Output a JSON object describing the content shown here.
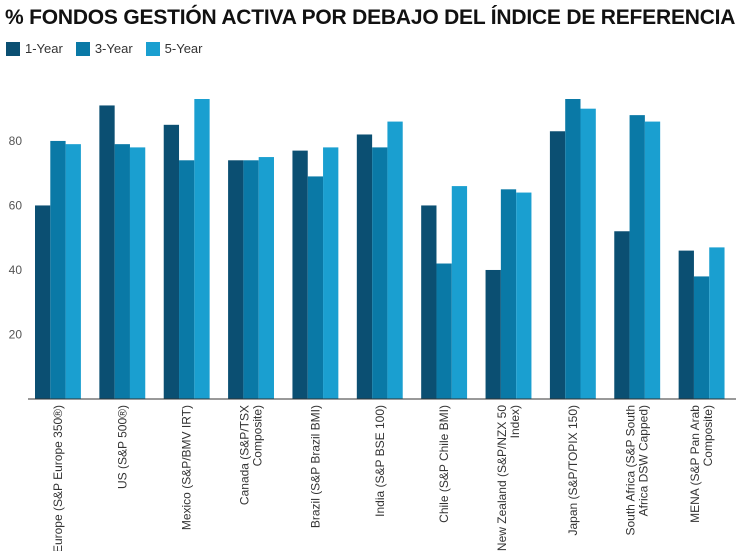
{
  "chart_data": {
    "type": "bar",
    "title": "% FONDOS GESTIÓN ACTIVA POR DEBAJO DEL ÍNDICE DE REFERENCIA",
    "xlabel": "",
    "ylabel": "",
    "ylim": [
      0,
      93
    ],
    "yticks": [
      20,
      40,
      60,
      80
    ],
    "grid": false,
    "legend_position": "top-left",
    "categories": [
      [
        "Europe (S&P Europe 350®)"
      ],
      [
        "US (S&P 500®)"
      ],
      [
        "Mexico (S&P/BMV IRT)"
      ],
      [
        "Canada (S&P/TSX",
        "Composite)"
      ],
      [
        "Brazil (S&P Brazil BMI)"
      ],
      [
        "India (S&P BSE 100)"
      ],
      [
        "Chile (S&P Chile BMI)"
      ],
      [
        "New Zealand (S&P/NZX 50",
        "Index)"
      ],
      [
        "Japan (S&P/TOPIX 150)"
      ],
      [
        "South Africa (S&P South",
        "Africa DSW Capped)"
      ],
      [
        "MENA (S&P Pan Arab",
        "Composite)"
      ]
    ],
    "series": [
      {
        "name": "1-Year",
        "color": "#0b4f72",
        "values": [
          60,
          91,
          85,
          74,
          77,
          82,
          60,
          40,
          83,
          52,
          46
        ]
      },
      {
        "name": "3-Year",
        "color": "#0a79a6",
        "values": [
          80,
          79,
          74,
          74,
          69,
          78,
          42,
          65,
          93,
          88,
          38
        ]
      },
      {
        "name": "5-Year",
        "color": "#1a9fd0",
        "values": [
          79,
          78,
          93,
          75,
          78,
          86,
          66,
          64,
          90,
          86,
          47
        ]
      }
    ]
  }
}
